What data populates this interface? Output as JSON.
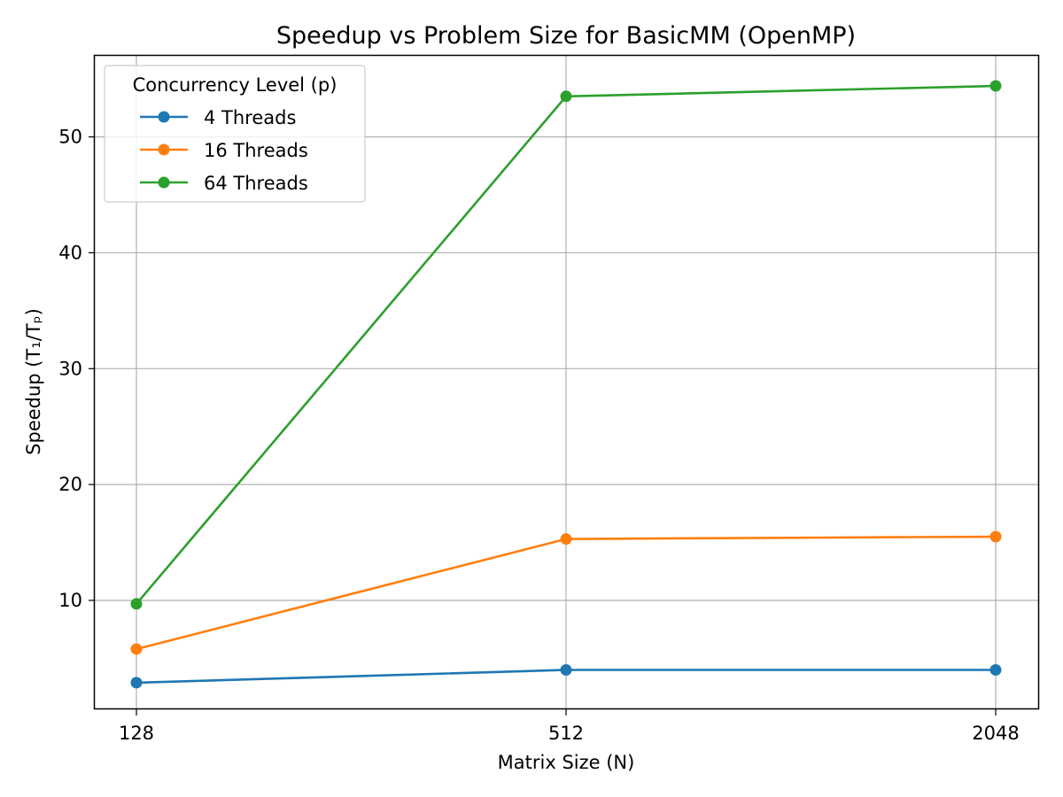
{
  "chart_data": {
    "type": "line",
    "title": "Speedup vs Problem Size for BasicMM (OpenMP)",
    "xlabel": "Matrix Size (N)",
    "ylabel": "Speedup (T₁/Tₚ)",
    "categories": [
      "128",
      "512",
      "2048"
    ],
    "ylim": [
      0.6,
      57.0
    ],
    "yticks": [
      10,
      20,
      30,
      40,
      50
    ],
    "grid": true,
    "legend": {
      "title": "Concurrency Level (p)",
      "placement": "top-left"
    },
    "series": [
      {
        "name": "4 Threads",
        "color": "#1f77b4",
        "values": [
          2.9,
          4.0,
          4.0
        ]
      },
      {
        "name": "16 Threads",
        "color": "#ff7f0e",
        "values": [
          5.8,
          15.3,
          15.5
        ]
      },
      {
        "name": "64 Threads",
        "color": "#2ca02c",
        "values": [
          9.7,
          53.5,
          54.4
        ]
      }
    ]
  }
}
